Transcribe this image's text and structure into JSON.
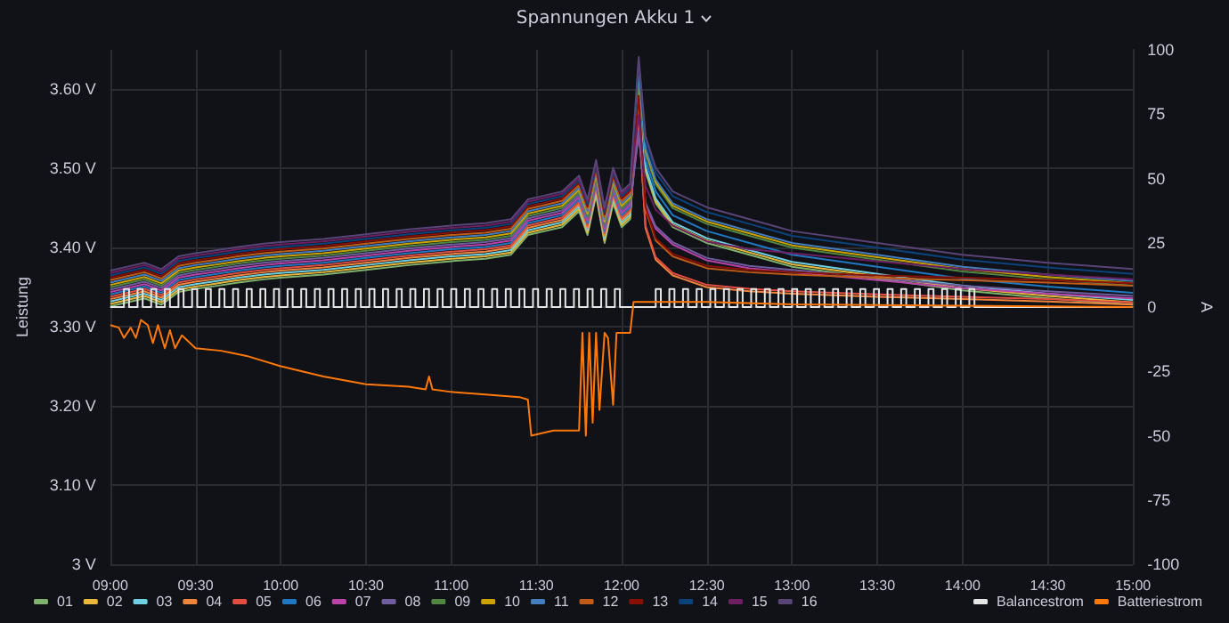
{
  "chart_data": {
    "type": "line",
    "title": "Spannungen Akku 1",
    "ylabel": "Leistung",
    "y2label": "A",
    "grid": true,
    "legend": "bottom",
    "marker": "none",
    "line_style": "solid",
    "xlim": [
      9,
      15
    ],
    "xticks": [
      {
        "value": 9,
        "label": "09:00"
      },
      {
        "value": 9.5,
        "label": "09:30"
      },
      {
        "value": 10,
        "label": "10:00"
      },
      {
        "value": 10.5,
        "label": "10:30"
      },
      {
        "value": 11,
        "label": "11:00"
      },
      {
        "value": 11.5,
        "label": "11:30"
      },
      {
        "value": 12,
        "label": "12:00"
      },
      {
        "value": 12.5,
        "label": "12:30"
      },
      {
        "value": 13,
        "label": "13:00"
      },
      {
        "value": 13.5,
        "label": "13:30"
      },
      {
        "value": 14,
        "label": "14:00"
      },
      {
        "value": 14.5,
        "label": "14:30"
      },
      {
        "value": 15,
        "label": "15:00"
      }
    ],
    "ylim": [
      3,
      3.65
    ],
    "yticks": [
      {
        "value": 3,
        "label": "3 V"
      },
      {
        "value": 3.1,
        "label": "3.10 V"
      },
      {
        "value": 3.2,
        "label": "3.20 V"
      },
      {
        "value": 3.3,
        "label": "3.30 V"
      },
      {
        "value": 3.4,
        "label": "3.40 V"
      },
      {
        "value": 3.5,
        "label": "3.50 V"
      },
      {
        "value": 3.6,
        "label": "3.60 V"
      }
    ],
    "y2lim": [
      -100,
      100
    ],
    "y2ticks": [
      -100,
      -75,
      -50,
      -25,
      0,
      25,
      50,
      75,
      100
    ],
    "x": [
      9,
      9.1,
      9.2,
      9.3,
      9.4,
      9.5,
      9.6,
      9.75,
      9.9,
      10,
      10.25,
      10.5,
      10.75,
      11,
      11.2,
      11.35,
      11.45,
      11.55,
      11.65,
      11.75,
      11.8,
      11.85,
      11.9,
      11.95,
      12,
      12.05,
      12.1,
      12.14,
      12.2,
      12.3,
      12.5,
      12.75,
      13,
      13.5,
      14,
      14.5,
      15
    ],
    "series": [
      {
        "name": "01",
        "color": "#7eb26d",
        "values": [
          3.326,
          3.331,
          3.336,
          3.328,
          3.344,
          3.348,
          3.351,
          3.356,
          3.36,
          3.362,
          3.366,
          3.372,
          3.378,
          3.383,
          3.386,
          3.391,
          3.416,
          3.421,
          3.426,
          3.446,
          3.416,
          3.466,
          3.406,
          3.456,
          3.426,
          3.436,
          3.596,
          3.496,
          3.456,
          3.426,
          3.406,
          3.391,
          3.376,
          3.361,
          3.346,
          3.336,
          3.328
        ]
      },
      {
        "name": "02",
        "color": "#eab839",
        "values": [
          3.329,
          3.334,
          3.339,
          3.331,
          3.347,
          3.351,
          3.354,
          3.359,
          3.363,
          3.365,
          3.369,
          3.375,
          3.381,
          3.386,
          3.389,
          3.394,
          3.419,
          3.424,
          3.429,
          3.449,
          3.419,
          3.469,
          3.409,
          3.459,
          3.429,
          3.439,
          3.599,
          3.499,
          3.459,
          3.429,
          3.409,
          3.394,
          3.379,
          3.364,
          3.349,
          3.339,
          3.331
        ]
      },
      {
        "name": "03",
        "color": "#6ed0e0",
        "values": [
          3.332,
          3.337,
          3.342,
          3.334,
          3.35,
          3.354,
          3.357,
          3.362,
          3.366,
          3.368,
          3.372,
          3.378,
          3.384,
          3.389,
          3.392,
          3.397,
          3.422,
          3.427,
          3.432,
          3.452,
          3.422,
          3.472,
          3.412,
          3.462,
          3.432,
          3.442,
          3.602,
          3.502,
          3.462,
          3.432,
          3.412,
          3.397,
          3.382,
          3.367,
          3.352,
          3.342,
          3.334
        ]
      },
      {
        "name": "04",
        "color": "#ef843c",
        "values": [
          3.335,
          3.34,
          3.345,
          3.337,
          3.353,
          3.357,
          3.36,
          3.365,
          3.369,
          3.371,
          3.375,
          3.381,
          3.387,
          3.392,
          3.395,
          3.4,
          3.425,
          3.43,
          3.435,
          3.455,
          3.425,
          3.475,
          3.415,
          3.465,
          3.435,
          3.445,
          3.565,
          3.425,
          3.385,
          3.365,
          3.35,
          3.345,
          3.342,
          3.338,
          3.335,
          3.332,
          3.328
        ]
      },
      {
        "name": "05",
        "color": "#e24d42",
        "values": [
          3.338,
          3.343,
          3.348,
          3.34,
          3.356,
          3.36,
          3.363,
          3.368,
          3.372,
          3.374,
          3.378,
          3.384,
          3.39,
          3.395,
          3.398,
          3.403,
          3.428,
          3.433,
          3.438,
          3.458,
          3.428,
          3.478,
          3.418,
          3.468,
          3.438,
          3.448,
          3.568,
          3.428,
          3.388,
          3.368,
          3.353,
          3.348,
          3.345,
          3.341,
          3.338,
          3.335,
          3.331
        ]
      },
      {
        "name": "06",
        "color": "#1f78c1",
        "values": [
          3.341,
          3.346,
          3.351,
          3.343,
          3.359,
          3.363,
          3.366,
          3.371,
          3.375,
          3.377,
          3.381,
          3.387,
          3.393,
          3.398,
          3.401,
          3.406,
          3.431,
          3.436,
          3.441,
          3.461,
          3.431,
          3.481,
          3.421,
          3.471,
          3.441,
          3.451,
          3.611,
          3.511,
          3.471,
          3.441,
          3.421,
          3.406,
          3.391,
          3.376,
          3.361,
          3.351,
          3.343
        ]
      },
      {
        "name": "07",
        "color": "#ba43a9",
        "values": [
          3.344,
          3.349,
          3.354,
          3.346,
          3.362,
          3.366,
          3.369,
          3.374,
          3.378,
          3.38,
          3.384,
          3.39,
          3.396,
          3.401,
          3.404,
          3.409,
          3.434,
          3.439,
          3.444,
          3.464,
          3.434,
          3.484,
          3.424,
          3.474,
          3.444,
          3.454,
          3.544,
          3.454,
          3.424,
          3.404,
          3.384,
          3.374,
          3.369,
          3.359,
          3.349,
          3.342,
          3.336
        ]
      },
      {
        "name": "08",
        "color": "#705da0",
        "values": [
          3.347,
          3.352,
          3.357,
          3.349,
          3.365,
          3.369,
          3.372,
          3.377,
          3.381,
          3.383,
          3.387,
          3.393,
          3.399,
          3.404,
          3.407,
          3.412,
          3.437,
          3.442,
          3.447,
          3.467,
          3.437,
          3.487,
          3.427,
          3.477,
          3.447,
          3.457,
          3.547,
          3.457,
          3.427,
          3.407,
          3.387,
          3.377,
          3.372,
          3.362,
          3.352,
          3.345,
          3.339
        ]
      },
      {
        "name": "09",
        "color": "#508642",
        "values": [
          3.35,
          3.355,
          3.36,
          3.352,
          3.368,
          3.372,
          3.375,
          3.38,
          3.384,
          3.386,
          3.39,
          3.396,
          3.402,
          3.407,
          3.41,
          3.415,
          3.44,
          3.445,
          3.45,
          3.47,
          3.44,
          3.49,
          3.43,
          3.48,
          3.45,
          3.46,
          3.62,
          3.52,
          3.48,
          3.45,
          3.43,
          3.415,
          3.4,
          3.385,
          3.37,
          3.36,
          3.352
        ]
      },
      {
        "name": "10",
        "color": "#cca300",
        "values": [
          3.353,
          3.358,
          3.363,
          3.355,
          3.371,
          3.375,
          3.378,
          3.383,
          3.387,
          3.389,
          3.393,
          3.399,
          3.405,
          3.41,
          3.413,
          3.418,
          3.443,
          3.448,
          3.453,
          3.473,
          3.443,
          3.493,
          3.433,
          3.483,
          3.453,
          3.463,
          3.623,
          3.523,
          3.483,
          3.453,
          3.433,
          3.418,
          3.403,
          3.388,
          3.373,
          3.363,
          3.355
        ]
      },
      {
        "name": "11",
        "color": "#447ebc",
        "values": [
          3.356,
          3.361,
          3.366,
          3.358,
          3.374,
          3.378,
          3.381,
          3.386,
          3.39,
          3.392,
          3.396,
          3.402,
          3.408,
          3.413,
          3.416,
          3.421,
          3.446,
          3.451,
          3.456,
          3.476,
          3.446,
          3.496,
          3.436,
          3.486,
          3.456,
          3.466,
          3.626,
          3.526,
          3.486,
          3.456,
          3.436,
          3.421,
          3.406,
          3.391,
          3.376,
          3.366,
          3.358
        ]
      },
      {
        "name": "12",
        "color": "#c15c17",
        "values": [
          3.359,
          3.364,
          3.369,
          3.361,
          3.377,
          3.381,
          3.384,
          3.389,
          3.393,
          3.395,
          3.399,
          3.405,
          3.411,
          3.416,
          3.419,
          3.424,
          3.449,
          3.454,
          3.459,
          3.479,
          3.449,
          3.499,
          3.439,
          3.489,
          3.459,
          3.469,
          3.589,
          3.449,
          3.409,
          3.389,
          3.374,
          3.369,
          3.366,
          3.362,
          3.359,
          3.356,
          3.352
        ]
      },
      {
        "name": "13",
        "color": "#890f02",
        "values": [
          3.362,
          3.367,
          3.372,
          3.364,
          3.38,
          3.384,
          3.387,
          3.392,
          3.396,
          3.398,
          3.402,
          3.408,
          3.414,
          3.419,
          3.422,
          3.427,
          3.452,
          3.457,
          3.462,
          3.482,
          3.452,
          3.502,
          3.442,
          3.492,
          3.462,
          3.472,
          3.592,
          3.452,
          3.412,
          3.392,
          3.377,
          3.372,
          3.369,
          3.365,
          3.362,
          3.359,
          3.355
        ]
      },
      {
        "name": "14",
        "color": "#0a437c",
        "values": [
          3.365,
          3.37,
          3.375,
          3.367,
          3.383,
          3.387,
          3.39,
          3.395,
          3.399,
          3.401,
          3.405,
          3.411,
          3.417,
          3.422,
          3.425,
          3.43,
          3.455,
          3.46,
          3.465,
          3.485,
          3.455,
          3.505,
          3.445,
          3.495,
          3.465,
          3.475,
          3.635,
          3.535,
          3.495,
          3.465,
          3.445,
          3.43,
          3.415,
          3.4,
          3.385,
          3.375,
          3.367
        ]
      },
      {
        "name": "15",
        "color": "#6d1f62",
        "values": [
          3.368,
          3.373,
          3.378,
          3.37,
          3.386,
          3.39,
          3.393,
          3.398,
          3.402,
          3.404,
          3.408,
          3.414,
          3.42,
          3.425,
          3.428,
          3.433,
          3.458,
          3.463,
          3.468,
          3.488,
          3.458,
          3.508,
          3.448,
          3.498,
          3.468,
          3.478,
          3.568,
          3.478,
          3.448,
          3.428,
          3.408,
          3.398,
          3.393,
          3.383,
          3.373,
          3.366,
          3.36
        ]
      },
      {
        "name": "16",
        "color": "#584477",
        "values": [
          3.371,
          3.376,
          3.381,
          3.373,
          3.389,
          3.393,
          3.396,
          3.401,
          3.405,
          3.407,
          3.411,
          3.417,
          3.423,
          3.428,
          3.431,
          3.436,
          3.461,
          3.466,
          3.471,
          3.491,
          3.461,
          3.511,
          3.451,
          3.501,
          3.471,
          3.481,
          3.641,
          3.541,
          3.501,
          3.471,
          3.451,
          3.436,
          3.421,
          3.406,
          3.391,
          3.381,
          3.373
        ]
      },
      {
        "name": "Balancestrom",
        "color": "#e6e6e6",
        "type": "step",
        "axis": "y2",
        "x": [
          9,
          9.08,
          9.11,
          9.16,
          9.19,
          9.24,
          9.27,
          9.32,
          9.35,
          9.4,
          9.43,
          9.48,
          9.51,
          9.56,
          9.59,
          9.64,
          9.67,
          9.72,
          9.75,
          9.8,
          9.83,
          9.88,
          9.91,
          9.96,
          9.99,
          10.04,
          10.07,
          10.12,
          10.15,
          10.2,
          10.23,
          10.28,
          10.31,
          10.36,
          10.39,
          10.44,
          10.47,
          10.52,
          10.55,
          10.6,
          10.63,
          10.68,
          10.71,
          10.76,
          10.79,
          10.84,
          10.87,
          10.92,
          10.95,
          11,
          11.03,
          11.08,
          11.11,
          11.16,
          11.19,
          11.24,
          11.27,
          11.32,
          11.35,
          11.4,
          11.43,
          11.48,
          11.51,
          11.56,
          11.59,
          11.64,
          11.67,
          11.72,
          11.75,
          11.8,
          11.83,
          11.88,
          11.91,
          11.96,
          11.99,
          12.2,
          12.23,
          12.28,
          12.31,
          12.36,
          12.39,
          12.44,
          12.47,
          12.52,
          12.55,
          12.6,
          12.63,
          12.68,
          12.71,
          12.76,
          12.79,
          12.84,
          12.87,
          12.92,
          12.95,
          13,
          13.03,
          13.08,
          13.11,
          13.16,
          13.19,
          13.24,
          13.27,
          13.32,
          13.35,
          13.4,
          13.43,
          13.48,
          13.51,
          13.56,
          13.59,
          13.64,
          13.67,
          13.72,
          13.75,
          13.8,
          13.83,
          13.88,
          13.91,
          13.96,
          13.99,
          14.04,
          14.07,
          15
        ],
        "values": [
          0,
          7,
          0,
          7,
          0,
          7,
          0,
          7,
          0,
          7,
          0,
          7,
          0,
          7,
          0,
          7,
          0,
          7,
          0,
          7,
          0,
          7,
          0,
          7,
          0,
          7,
          0,
          7,
          0,
          7,
          0,
          7,
          0,
          7,
          0,
          7,
          0,
          7,
          0,
          7,
          0,
          7,
          0,
          7,
          0,
          7,
          0,
          7,
          0,
          7,
          0,
          7,
          0,
          7,
          0,
          7,
          0,
          7,
          0,
          7,
          0,
          7,
          0,
          7,
          0,
          7,
          0,
          7,
          0,
          7,
          0,
          7,
          0,
          7,
          0,
          7,
          0,
          7,
          0,
          7,
          0,
          7,
          0,
          7,
          0,
          7,
          0,
          7,
          0,
          7,
          0,
          7,
          0,
          7,
          0,
          7,
          0,
          7,
          0,
          7,
          0,
          7,
          0,
          7,
          0,
          7,
          0,
          7,
          0,
          7,
          0,
          7,
          0,
          7,
          0,
          7,
          0,
          7,
          0,
          7,
          0,
          7,
          0,
          0
        ]
      },
      {
        "name": "Batteriestrom",
        "color": "#ff780a",
        "axis": "y2",
        "x": [
          9,
          9.05,
          9.08,
          9.12,
          9.15,
          9.18,
          9.22,
          9.25,
          9.28,
          9.32,
          9.35,
          9.38,
          9.42,
          9.5,
          9.65,
          9.8,
          10,
          10.25,
          10.5,
          10.75,
          10.85,
          10.87,
          10.89,
          11,
          11.2,
          11.4,
          11.45,
          11.47,
          11.6,
          11.75,
          11.77,
          11.79,
          11.81,
          11.83,
          11.85,
          11.87,
          11.9,
          11.92,
          11.95,
          11.97,
          12.05,
          12.07,
          12.5,
          13,
          15
        ],
        "values": [
          -7,
          -8,
          -12,
          -8,
          -12,
          -5,
          -7,
          -14,
          -7,
          -16,
          -9,
          -16,
          -11,
          -16,
          -17,
          -19,
          -23,
          -27,
          -30,
          -31,
          -32,
          -27,
          -32,
          -33,
          -34,
          -35,
          -36,
          -50,
          -48,
          -48,
          -10,
          -50,
          -10,
          -45,
          -10,
          -40,
          -10,
          -12,
          -38,
          -10,
          -10,
          2,
          2,
          1,
          0
        ]
      }
    ]
  }
}
